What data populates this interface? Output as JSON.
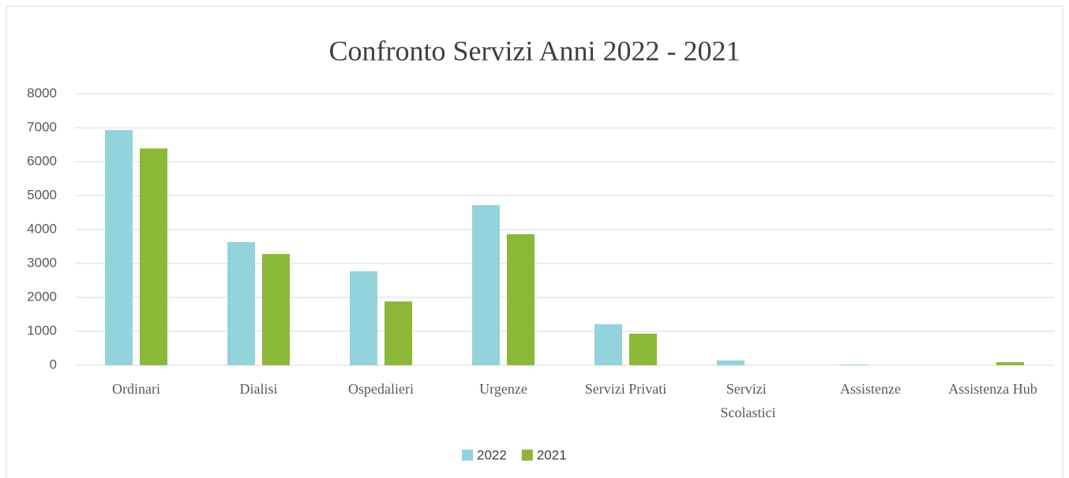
{
  "chart_data": {
    "type": "bar",
    "title": "Confronto Servizi Anni 2022 - 2021",
    "categories": [
      "Ordinari",
      "Dialisi",
      "Ospedalieri",
      "Urgenze",
      "Servizi Privati",
      "Servizi Scolastici",
      "Assistenze",
      "Assistenza Hub"
    ],
    "series": [
      {
        "name": "2022",
        "color": "#92d3dc",
        "values": [
          6930,
          3630,
          2770,
          4720,
          1210,
          140,
          20,
          0
        ]
      },
      {
        "name": "2021",
        "color": "#8bb836",
        "values": [
          6390,
          3280,
          1880,
          3860,
          930,
          0,
          0,
          90
        ]
      }
    ],
    "ylim": [
      0,
      8000
    ],
    "yticks": [
      0,
      1000,
      2000,
      3000,
      4000,
      5000,
      6000,
      7000,
      8000
    ],
    "grid": true,
    "legend": "bottom"
  }
}
